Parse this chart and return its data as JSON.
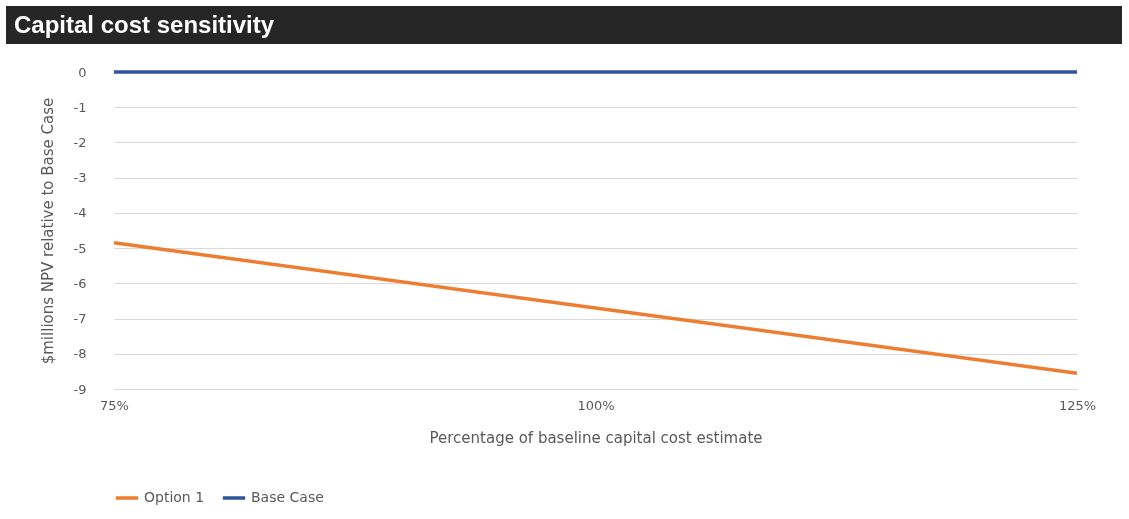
{
  "chart_data": {
    "type": "line",
    "title": "Capital cost sensitivity",
    "xlabel": "Percentage of baseline capital cost estimate",
    "ylabel": "$millions NPV relative to Base Case",
    "x": [
      75,
      100,
      125
    ],
    "series": [
      {
        "name": "Option 1",
        "color": "#ed7d31",
        "values": [
          -4.85,
          -6.7,
          -8.55
        ]
      },
      {
        "name": "Base Case",
        "color": "#2f5597",
        "values": [
          0,
          0,
          0
        ]
      }
    ],
    "xlim": [
      75,
      125
    ],
    "xticks": [
      {
        "value": 75,
        "label": "75%"
      },
      {
        "value": 100,
        "label": "100%"
      },
      {
        "value": 125,
        "label": "125%"
      }
    ],
    "ylim": [
      -9,
      0
    ],
    "yticks": [
      0,
      -1,
      -2,
      -3,
      -4,
      -5,
      -6,
      -7,
      -8,
      -9
    ],
    "grid": "y",
    "legend": "bottom"
  }
}
